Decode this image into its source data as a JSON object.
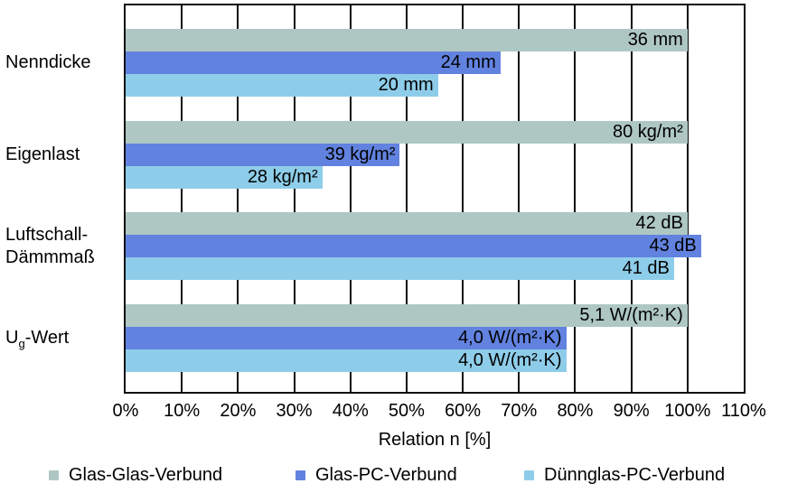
{
  "chart_data": {
    "type": "bar",
    "orientation": "horizontal",
    "title": "",
    "xlabel": "Relation n [%]",
    "ylabel": "",
    "xlim": [
      0,
      110
    ],
    "grid": true,
    "legend_position": "bottom",
    "x_ticks": [
      "0%",
      "10%",
      "20%",
      "30%",
      "40%",
      "50%",
      "60%",
      "70%",
      "80%",
      "90%",
      "100%",
      "110%"
    ],
    "categories": [
      {
        "lines": [
          "Nenndicke"
        ]
      },
      {
        "lines": [
          "Eigenlast"
        ]
      },
      {
        "lines": [
          "Luftschall-",
          "Dämmmaß"
        ]
      },
      {
        "parts": {
          "pre": "U",
          "sub": "g",
          "post": "-Wert"
        }
      }
    ],
    "series": [
      {
        "name": "Glas-Glas-Verbund",
        "color": "#aec7c3",
        "values_pct": [
          100,
          100,
          100,
          100
        ],
        "labels": [
          "36 mm",
          "80 kg/m²",
          "42 dB",
          "5,1 W/(m²·K)"
        ]
      },
      {
        "name": "Glas-PC-Verbund",
        "color": "#6282df",
        "values_pct": [
          66.7,
          48.8,
          102.4,
          78.4
        ],
        "labels": [
          "24 mm",
          "39 kg/m²",
          "43 dB",
          "4,0 W/(m²·K)"
        ]
      },
      {
        "name": "Dünnglas-PC-Verbund",
        "color": "#8ecde9",
        "values_pct": [
          55.6,
          35,
          97.6,
          78.4
        ],
        "labels": [
          "20 mm",
          "28 kg/m²",
          "41 dB",
          "4,0 W/(m²·K)"
        ]
      }
    ]
  }
}
